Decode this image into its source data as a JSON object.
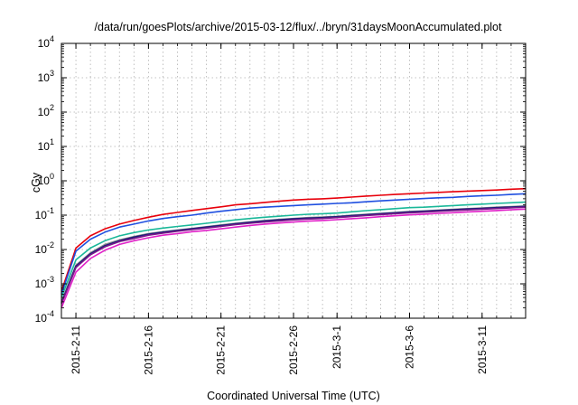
{
  "chart_data": {
    "type": "line",
    "title": "/data/run/goesPlots/archive/2015-03-12/flux/../bryn/31daysMoonAccumulated.plot",
    "xlabel": "Coordinated Universal Time (UTC)",
    "ylabel": "cGy",
    "yscale": "log",
    "ylim": [
      0.0001,
      10000
    ],
    "xlim": [
      "2015-02-10",
      "2015-03-14"
    ],
    "grid": true,
    "y_ticks": [
      {
        "base": "10",
        "exp": "-4",
        "value": 0.0001
      },
      {
        "base": "10",
        "exp": "-3",
        "value": 0.001
      },
      {
        "base": "10",
        "exp": "-2",
        "value": 0.01
      },
      {
        "base": "10",
        "exp": "-1",
        "value": 0.1
      },
      {
        "base": "10",
        "exp": "0",
        "value": 1
      },
      {
        "base": "10",
        "exp": "1",
        "value": 10
      },
      {
        "base": "10",
        "exp": "2",
        "value": 100
      },
      {
        "base": "10",
        "exp": "3",
        "value": 1000
      },
      {
        "base": "10",
        "exp": "4",
        "value": 10000
      }
    ],
    "x_ticks": [
      {
        "label": "2015-2-11",
        "date": "2015-02-11"
      },
      {
        "label": "2015-2-16",
        "date": "2015-02-16"
      },
      {
        "label": "2015-2-21",
        "date": "2015-02-21"
      },
      {
        "label": "2015-2-26",
        "date": "2015-02-26"
      },
      {
        "label": "2015-3-1",
        "date": "2015-03-01"
      },
      {
        "label": "2015-3-6",
        "date": "2015-03-06"
      },
      {
        "label": "2015-3-11",
        "date": "2015-03-11"
      }
    ],
    "x": [
      "2015-02-10",
      "2015-02-11",
      "2015-02-12",
      "2015-02-13",
      "2015-02-14",
      "2015-02-15",
      "2015-02-16",
      "2015-02-17",
      "2015-02-18",
      "2015-02-19",
      "2015-02-20",
      "2015-02-21",
      "2015-02-22",
      "2015-02-23",
      "2015-02-24",
      "2015-02-25",
      "2015-02-26",
      "2015-02-27",
      "2015-02-28",
      "2015-03-01",
      "2015-03-02",
      "2015-03-03",
      "2015-03-04",
      "2015-03-05",
      "2015-03-06",
      "2015-03-07",
      "2015-03-08",
      "2015-03-09",
      "2015-03-10",
      "2015-03-11",
      "2015-03-12",
      "2015-03-13",
      "2015-03-14"
    ],
    "series": [
      {
        "color": "#e8000b",
        "values": [
          0.0006,
          0.011,
          0.025,
          0.04,
          0.055,
          0.07,
          0.087,
          0.105,
          0.12,
          0.137,
          0.155,
          0.175,
          0.2,
          0.215,
          0.235,
          0.255,
          0.275,
          0.29,
          0.3,
          0.315,
          0.335,
          0.36,
          0.38,
          0.4,
          0.42,
          0.44,
          0.46,
          0.48,
          0.5,
          0.52,
          0.54,
          0.57,
          0.59
        ]
      },
      {
        "color": "#1f4fe0",
        "values": [
          0.0005,
          0.009,
          0.02,
          0.032,
          0.045,
          0.055,
          0.068,
          0.08,
          0.09,
          0.1,
          0.115,
          0.13,
          0.145,
          0.16,
          0.17,
          0.18,
          0.19,
          0.2,
          0.21,
          0.22,
          0.23,
          0.245,
          0.26,
          0.275,
          0.29,
          0.305,
          0.32,
          0.33,
          0.35,
          0.365,
          0.38,
          0.4,
          0.42
        ]
      },
      {
        "color": "#1ab899",
        "values": [
          0.0004,
          0.005,
          0.011,
          0.018,
          0.025,
          0.031,
          0.037,
          0.042,
          0.047,
          0.052,
          0.058,
          0.065,
          0.073,
          0.08,
          0.087,
          0.093,
          0.1,
          0.106,
          0.11,
          0.115,
          0.125,
          0.135,
          0.145,
          0.155,
          0.165,
          0.17,
          0.18,
          0.19,
          0.2,
          0.21,
          0.22,
          0.23,
          0.24
        ]
      },
      {
        "color": "#8a8a8a",
        "values": [
          0.0003,
          0.0035,
          0.008,
          0.014,
          0.019,
          0.024,
          0.029,
          0.033,
          0.037,
          0.041,
          0.046,
          0.052,
          0.058,
          0.064,
          0.07,
          0.075,
          0.08,
          0.085,
          0.088,
          0.092,
          0.1,
          0.106,
          0.113,
          0.12,
          0.128,
          0.133,
          0.14,
          0.148,
          0.155,
          0.162,
          0.17,
          0.178,
          0.185
        ]
      },
      {
        "color": "#1a1a7a",
        "values": [
          0.00028,
          0.0033,
          0.0075,
          0.013,
          0.018,
          0.023,
          0.028,
          0.032,
          0.036,
          0.04,
          0.045,
          0.05,
          0.056,
          0.062,
          0.068,
          0.073,
          0.078,
          0.082,
          0.085,
          0.09,
          0.097,
          0.103,
          0.11,
          0.117,
          0.124,
          0.13,
          0.137,
          0.144,
          0.151,
          0.158,
          0.165,
          0.173,
          0.18
        ]
      },
      {
        "color": "#7a1a8a",
        "values": [
          0.00026,
          0.003,
          0.007,
          0.012,
          0.017,
          0.021,
          0.026,
          0.03,
          0.034,
          0.038,
          0.042,
          0.047,
          0.053,
          0.058,
          0.063,
          0.068,
          0.073,
          0.077,
          0.08,
          0.085,
          0.091,
          0.097,
          0.104,
          0.11,
          0.117,
          0.122,
          0.129,
          0.135,
          0.142,
          0.149,
          0.156,
          0.163,
          0.17
        ]
      },
      {
        "color": "#e020c8",
        "values": [
          0.0002,
          0.0022,
          0.0055,
          0.0095,
          0.014,
          0.018,
          0.022,
          0.026,
          0.029,
          0.033,
          0.036,
          0.04,
          0.045,
          0.05,
          0.055,
          0.059,
          0.063,
          0.067,
          0.07,
          0.074,
          0.079,
          0.084,
          0.09,
          0.096,
          0.102,
          0.107,
          0.113,
          0.118,
          0.124,
          0.13,
          0.136,
          0.143,
          0.15
        ]
      }
    ]
  }
}
